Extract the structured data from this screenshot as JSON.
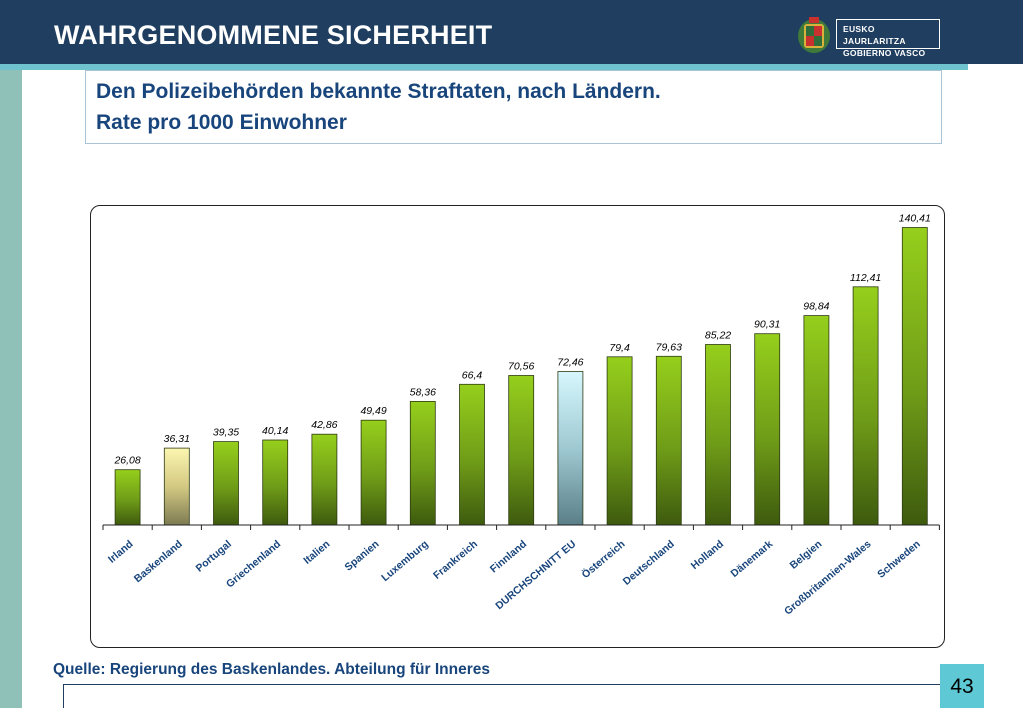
{
  "header": {
    "title": "WAHRGENOMMENE SICHERHEIT",
    "logo_line1": "EUSKO JAURLARITZA",
    "logo_line2": "GOBIERNO VASCO"
  },
  "subtitle": {
    "line1": "Den Polizeibehörden bekannte Straftaten, nach Ländern.",
    "line2": "Rate pro 1000 Einwohner"
  },
  "source": "Quelle: Regierung des Baskenlandes. Abteilung für Inneres",
  "page_number": "43",
  "colors": {
    "header": "#1f3e60",
    "accent": "#6fc3cf",
    "bar_green": "#8cc21a",
    "bar_yellow": "#f6ee9c",
    "bar_cyan": "#c9f3fb",
    "text_blue": "#18457c"
  },
  "chart_data": {
    "type": "bar",
    "categories": [
      "Irland",
      "Baskenland",
      "Portugal",
      "Griechenland",
      "Italien",
      "Spanien",
      "Luxemburg",
      "Frankreich",
      "Finnland",
      "DURCHSCHNITT EU",
      "Österreich",
      "Deutschland",
      "Holland",
      "Dänemark",
      "Belgien",
      "Großbritannien-Wales",
      "Schweden"
    ],
    "values": [
      26.08,
      36.31,
      39.35,
      40.14,
      42.86,
      49.49,
      58.36,
      66.4,
      70.56,
      72.46,
      79.4,
      79.63,
      85.22,
      90.31,
      98.84,
      112.41,
      140.41
    ],
    "data_labels": [
      "26,08",
      "36,31",
      "39,35",
      "40,14",
      "42,86",
      "49,49",
      "58,36",
      "66,4",
      "70,56",
      "72,46",
      "79,4",
      "79,63",
      "85,22",
      "90,31",
      "98,84",
      "112,41",
      "140,41"
    ],
    "highlight": {
      "Baskenland": "yellow",
      "DURCHSCHNITT EU": "cyan"
    },
    "ylim": [
      0,
      150
    ],
    "grid": false,
    "legend": "none"
  }
}
